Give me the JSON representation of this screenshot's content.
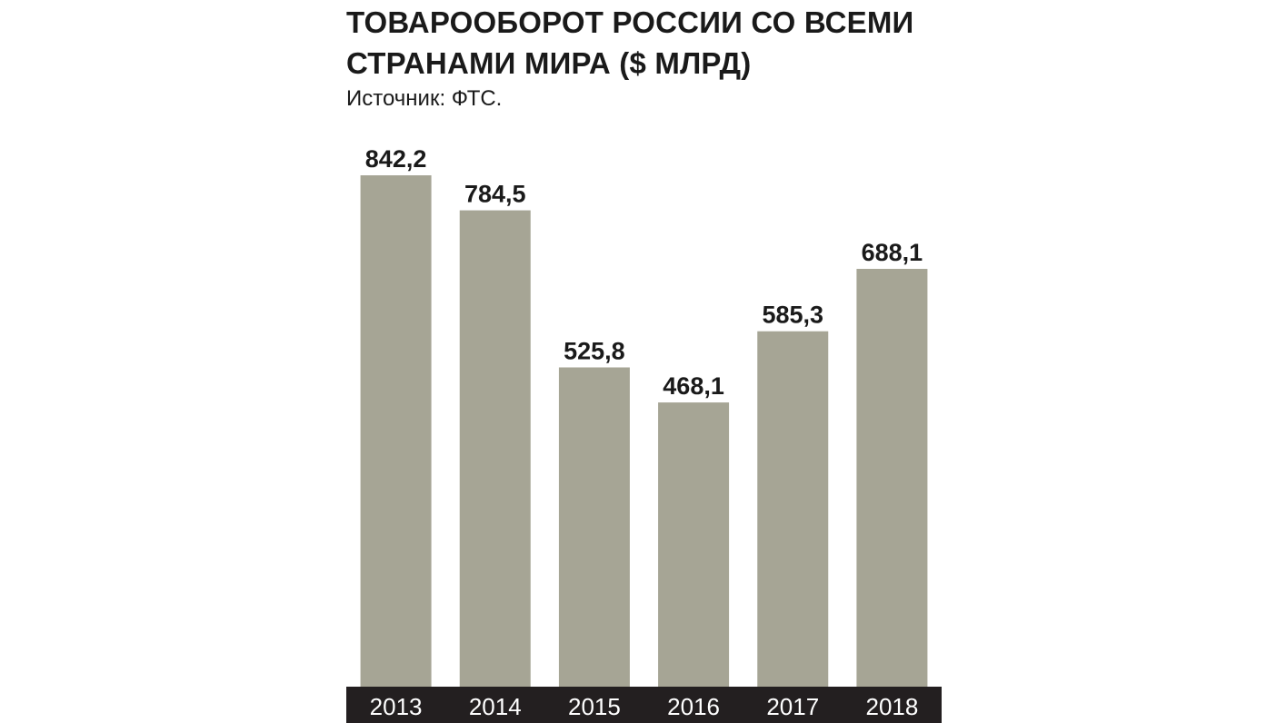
{
  "chart_data": {
    "type": "bar",
    "title_lines": [
      "ТОВАРООБОРОТ РОССИИ СО ВСЕМИ",
      "СТРАНАМИ МИРА ($ МЛРД)"
    ],
    "subtitle": "Источник: ФТС.",
    "categories": [
      "2013",
      "2014",
      "2015",
      "2016",
      "2017",
      "2018"
    ],
    "values": [
      842.2,
      784.5,
      525.8,
      468.1,
      585.3,
      688.1
    ],
    "value_labels": [
      "842,2",
      "784,5",
      "525,8",
      "468,1",
      "585,3",
      "688,1"
    ],
    "xlabel": "",
    "ylabel": "",
    "ylim": [
      0,
      842.2
    ],
    "grid": false,
    "legend": "none",
    "colors": {
      "bar": "#a6a595",
      "axis_strip": "#231f20",
      "text": "#1a1a1a",
      "tick_text": "#ffffff"
    }
  }
}
